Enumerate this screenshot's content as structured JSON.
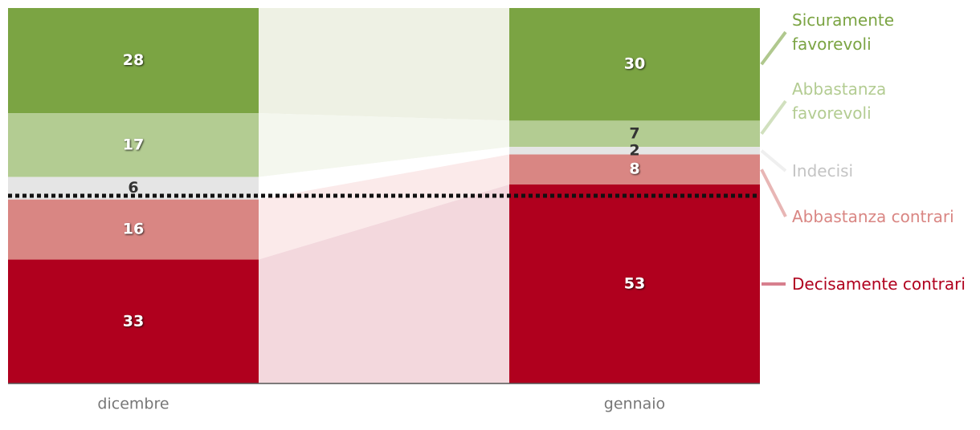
{
  "chart_data": {
    "type": "stacked_bar",
    "categories": [
      "dicembre",
      "gennaio"
    ],
    "series": [
      {
        "name": "Sicuramente favorevoli",
        "color": "#7ba443",
        "band_color": "#eef1e4",
        "values": [
          28,
          30
        ]
      },
      {
        "name": "Abbastanza favorevoli",
        "color": "#b3cc92",
        "band_color": "#f4f7ee",
        "values": [
          17,
          7
        ]
      },
      {
        "name": "Indecisi",
        "color": "#e5e5e5",
        "label_color": "#c4c4c4",
        "band_color": "#ffffff",
        "values": [
          6,
          2
        ]
      },
      {
        "name": "Abbastanza contrari",
        "color": "#d98683",
        "band_color": "#fbeaea",
        "values": [
          16,
          8
        ]
      },
      {
        "name": "Decisamente contrari",
        "color": "#b0001e",
        "band_color": "#f3d8dd",
        "values": [
          33,
          53
        ]
      }
    ],
    "ylim": [
      0,
      100
    ],
    "reference_line": 50
  }
}
